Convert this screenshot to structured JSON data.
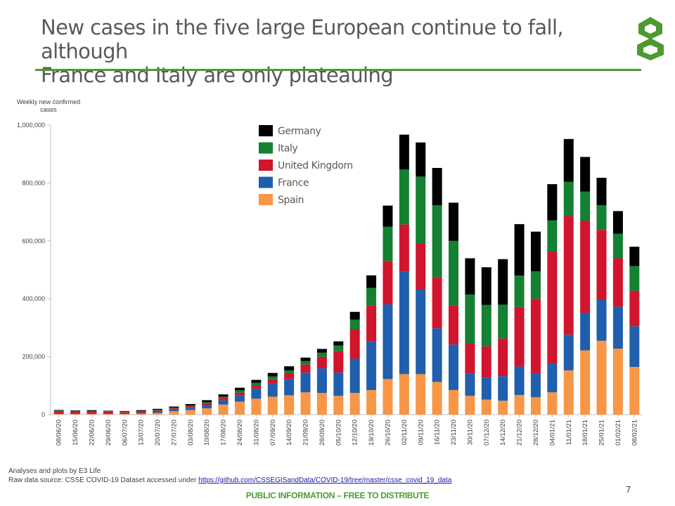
{
  "slide": {
    "title_line1": "New cases in the five large European continue to fall, although",
    "title_line2": "France and Italy are only plateauing",
    "page_number": "7",
    "footer_line1": "Analyses and plots by E3 Life",
    "footer_line2_prefix": "Raw data source: CSSE COVID-19 Dataset accessed under ",
    "footer_link": "https://github.com/CSSEGISandData/COVID-19/tree/master/csse_covid_19_data",
    "public_notice": "PUBLIC INFORMATION – FREE TO DISTRIBUTE",
    "logo_icon": "e3-life-logo-icon",
    "accent_color": "#4e9a31"
  },
  "chart_data": {
    "type": "bar",
    "stacked": true,
    "title": "",
    "ylabel": "Weekly new confirmed cases",
    "xlabel": "",
    "ylim": [
      0,
      1000000
    ],
    "yticks": [
      0,
      200000,
      400000,
      600000,
      800000,
      1000000
    ],
    "ytick_labels": [
      "0",
      "200,000",
      "400,000",
      "600,000",
      "800,000",
      "1,000,000"
    ],
    "grid": false,
    "legend_position": "top-left-center",
    "categories": [
      "08/06/20",
      "15/06/20",
      "22/06/20",
      "29/06/20",
      "06/07/20",
      "13/07/20",
      "20/07/20",
      "27/07/20",
      "03/08/20",
      "10/08/20",
      "17/08/20",
      "24/08/20",
      "31/08/20",
      "07/09/20",
      "14/09/20",
      "21/09/20",
      "28/09/20",
      "05/10/20",
      "12/10/20",
      "19/10/20",
      "26/10/20",
      "02/11/20",
      "09/11/20",
      "16/11/20",
      "23/11/20",
      "30/11/20",
      "07/12/20",
      "14/12/20",
      "21/12/20",
      "28/12/20",
      "04/01/21",
      "11/01/21",
      "18/01/21",
      "25/01/21",
      "01/02/21",
      "08/02/21"
    ],
    "series": [
      {
        "name": "Spain",
        "color": "#f79646",
        "values": [
          2000,
          2000,
          2000,
          2000,
          2000,
          3000,
          6000,
          12000,
          16000,
          22000,
          35000,
          45000,
          55000,
          62000,
          67000,
          77000,
          75000,
          65000,
          75000,
          85000,
          123000,
          140000,
          140000,
          113000,
          85000,
          65000,
          52000,
          48000,
          68000,
          60000,
          77000,
          153000,
          222000,
          255000,
          228000,
          165000
        ]
      },
      {
        "name": "France",
        "color": "#1f5fae",
        "values": [
          3000,
          3000,
          3000,
          3000,
          3000,
          4000,
          5000,
          6000,
          8000,
          12000,
          15000,
          22000,
          35000,
          45000,
          55000,
          68000,
          85000,
          80000,
          118000,
          168000,
          258000,
          355000,
          292000,
          185000,
          157000,
          78000,
          76000,
          85000,
          98000,
          83000,
          100000,
          123000,
          130000,
          143000,
          145000,
          140000
        ]
      },
      {
        "name": "United Kingdom",
        "color": "#d0152c",
        "values": [
          7000,
          6000,
          6000,
          5000,
          4000,
          4000,
          4000,
          4000,
          5000,
          6000,
          8000,
          9000,
          11000,
          15000,
          20000,
          28000,
          40000,
          75000,
          102000,
          125000,
          150000,
          162000,
          160000,
          177000,
          136000,
          102000,
          108000,
          130000,
          206000,
          257000,
          386000,
          410000,
          318000,
          240000,
          167000,
          123000
        ]
      },
      {
        "name": "Italy",
        "color": "#138131",
        "values": [
          2000,
          1500,
          1500,
          1500,
          1500,
          1500,
          2000,
          2000,
          2500,
          3000,
          4000,
          8000,
          9000,
          10000,
          11000,
          12000,
          14000,
          19000,
          33000,
          60000,
          118000,
          190000,
          230000,
          248000,
          222000,
          170000,
          143000,
          117000,
          108000,
          95000,
          108000,
          118000,
          100000,
          85000,
          85000,
          85000
        ]
      },
      {
        "name": "Germany",
        "color": "#000000",
        "values": [
          2000,
          2000,
          3000,
          2000,
          2000,
          3000,
          3000,
          4000,
          5000,
          7000,
          8000,
          9000,
          10000,
          12000,
          14000,
          12000,
          13000,
          14000,
          27000,
          43000,
          73000,
          120000,
          118000,
          129000,
          132000,
          125000,
          130000,
          157000,
          178000,
          137000,
          125000,
          148000,
          120000,
          95000,
          78000,
          67000
        ]
      }
    ]
  }
}
